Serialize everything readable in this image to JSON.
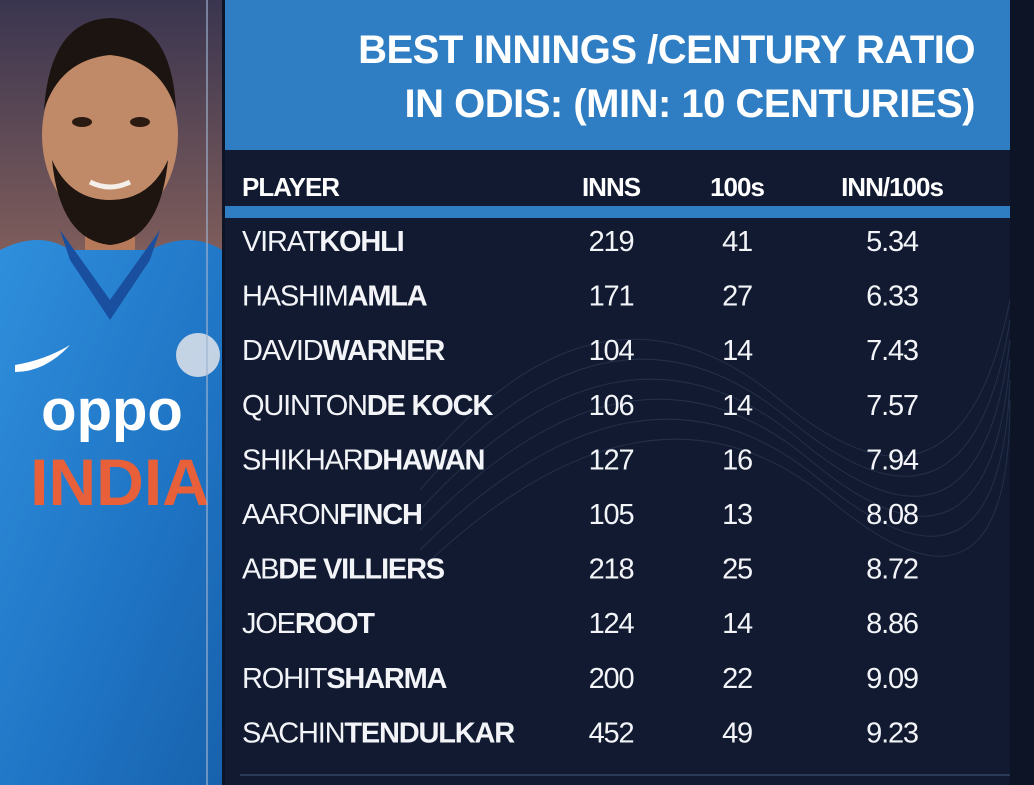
{
  "title": [
    "BEST INNINGS /CENTURY RATIO",
    "IN ODIS: (MIN: 10 CENTURIES)"
  ],
  "photo": {
    "jersey_text": [
      "oppo",
      "INDIA"
    ]
  },
  "table": {
    "header": [
      "PLAYER",
      "INNS",
      "100s",
      "INN/100s"
    ],
    "rows": [
      [
        [
          "VIRAT",
          "KOHLI"
        ],
        219,
        41,
        5.34
      ],
      [
        [
          "HASHIM",
          "AMLA"
        ],
        171,
        27,
        6.33
      ],
      [
        [
          "DAVID",
          "WARNER"
        ],
        104,
        14,
        7.43
      ],
      [
        [
          "QUINTON",
          "DE KOCK"
        ],
        106,
        14,
        7.57
      ],
      [
        [
          "SHIKHAR",
          "DHAWAN"
        ],
        127,
        16,
        7.94
      ],
      [
        [
          "AARON",
          "FINCH"
        ],
        105,
        13,
        8.08
      ],
      [
        [
          "AB",
          "DE VILLIERS"
        ],
        218,
        25,
        8.72
      ],
      [
        [
          "JOE",
          "ROOT"
        ],
        124,
        14,
        8.86
      ],
      [
        [
          "ROHIT",
          "SHARMA"
        ],
        200,
        22,
        9.09
      ],
      [
        [
          "SACHIN",
          "TENDULKAR"
        ],
        452,
        49,
        9.23
      ]
    ]
  }
}
